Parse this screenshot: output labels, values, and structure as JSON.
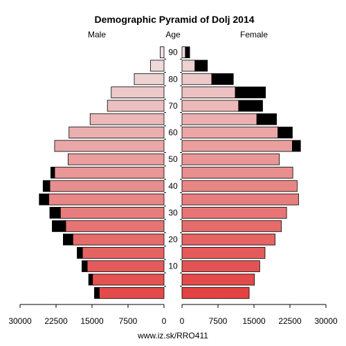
{
  "chart_data": {
    "type": "bar",
    "title": "Demographic Pyramid of Dolj 2014",
    "left_label": "Male",
    "center_label": "Age",
    "right_label": "Female",
    "footer": "www.iz.sk/RRO411",
    "xlim": [
      0,
      30000
    ],
    "x_ticks_left": [
      "30000",
      "22500",
      "15000",
      "7500",
      "0"
    ],
    "x_ticks_right": [
      "0",
      "7500",
      "15000",
      "22500",
      "30000"
    ],
    "age_ticks": [
      "10",
      "20",
      "30",
      "40",
      "50",
      "60",
      "70",
      "80",
      "90"
    ],
    "age_groups": [
      "0-4",
      "5-9",
      "10-14",
      "15-19",
      "20-24",
      "25-29",
      "30-34",
      "35-39",
      "40-44",
      "45-49",
      "50-54",
      "55-59",
      "60-64",
      "65-69",
      "70-74",
      "75-79",
      "80-84",
      "85-89",
      "90+"
    ],
    "series": [
      {
        "name": "Male",
        "values": [
          13500,
          14900,
          16000,
          17000,
          19000,
          20500,
          21600,
          24000,
          23800,
          22800,
          20000,
          22800,
          19800,
          15400,
          11800,
          11000,
          6200,
          2800,
          800
        ]
      },
      {
        "name": "Male surplus",
        "values": [
          1000,
          800,
          1100,
          1100,
          2000,
          2800,
          2200,
          2000,
          1400,
          800,
          0,
          0,
          0,
          0,
          0,
          0,
          0,
          0,
          0
        ]
      },
      {
        "name": "Female",
        "values": [
          14000,
          15100,
          16200,
          17300,
          19400,
          20700,
          21800,
          24300,
          24000,
          23100,
          20300,
          23000,
          20000,
          15600,
          11800,
          11100,
          6200,
          2700,
          700
        ]
      },
      {
        "name": "Female surplus",
        "values": [
          0,
          0,
          0,
          0,
          0,
          0,
          0,
          0,
          0,
          0,
          0,
          1700,
          3000,
          4100,
          5000,
          6300,
          4500,
          2600,
          900
        ]
      }
    ],
    "colors": {
      "young": "#e34a4a",
      "old": "#efe2e2",
      "surplus": "#000000",
      "outline": "#000000"
    }
  }
}
